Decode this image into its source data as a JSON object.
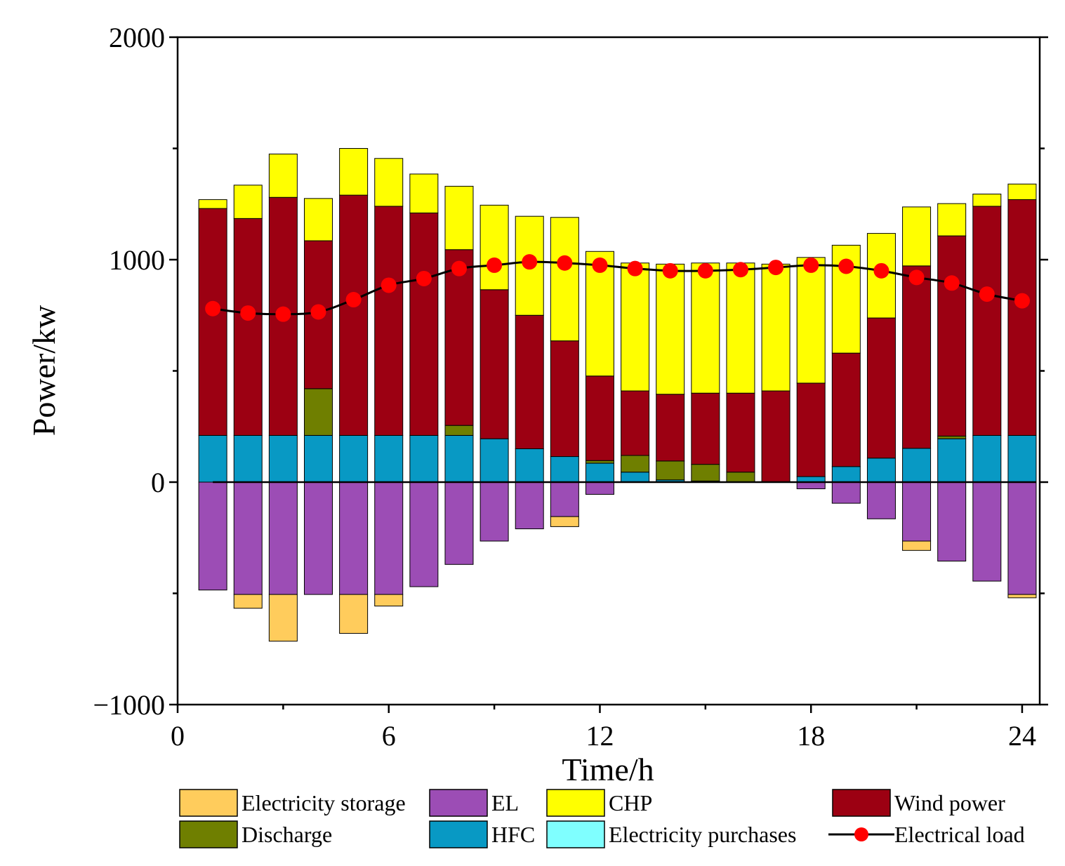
{
  "chart_data": {
    "type": "bar",
    "title": "",
    "xlabel": "Time/h",
    "ylabel": "Power/kw",
    "xlim": [
      0,
      24.5
    ],
    "ylim": [
      -1000,
      2000
    ],
    "xticks": [
      0,
      6,
      12,
      18,
      24
    ],
    "yticks": [
      -1000,
      0,
      1000,
      2000
    ],
    "x": [
      1,
      2,
      3,
      4,
      5,
      6,
      7,
      8,
      9,
      10,
      11,
      12,
      13,
      14,
      15,
      16,
      17,
      18,
      19,
      20,
      21,
      22,
      23,
      24
    ],
    "series": [
      {
        "name": "HFC",
        "color": "#0899C4",
        "values": [
          210,
          210,
          210,
          210,
          210,
          210,
          210,
          210,
          195,
          150,
          115,
          85,
          45,
          10,
          5,
          0,
          0,
          25,
          70,
          108,
          152,
          195,
          210,
          210
        ]
      },
      {
        "name": "Discharge",
        "color": "#6F7F00",
        "values": [
          0,
          0,
          0,
          210,
          0,
          0,
          0,
          45,
          0,
          0,
          0,
          12,
          75,
          85,
          75,
          45,
          0,
          0,
          0,
          0,
          0,
          12,
          0,
          0
        ]
      },
      {
        "name": "Electricity purchases",
        "color": "#7FFFFF",
        "values": [
          0,
          0,
          0,
          0,
          0,
          0,
          0,
          0,
          0,
          0,
          0,
          0,
          0,
          0,
          0,
          0,
          0,
          0,
          0,
          0,
          0,
          0,
          0,
          0
        ]
      },
      {
        "name": "Wind power",
        "color": "#9C0012",
        "values": [
          1020,
          975,
          1070,
          665,
          1080,
          1030,
          1000,
          790,
          670,
          600,
          520,
          380,
          290,
          300,
          320,
          355,
          410,
          420,
          510,
          630,
          820,
          900,
          1030,
          1060
        ]
      },
      {
        "name": "CHP",
        "color": "#FFFF00",
        "values": [
          40,
          150,
          195,
          190,
          210,
          215,
          175,
          285,
          380,
          445,
          555,
          560,
          575,
          585,
          585,
          585,
          570,
          565,
          485,
          380,
          265,
          145,
          55,
          70
        ]
      },
      {
        "name": "EL",
        "color": "#9C4DB5",
        "values": [
          -485,
          -505,
          -505,
          -505,
          -505,
          -505,
          -470,
          -370,
          -265,
          -210,
          -155,
          -55,
          0,
          0,
          0,
          0,
          0,
          -30,
          -95,
          -165,
          -265,
          -355,
          -445,
          -505
        ]
      },
      {
        "name": "Electricity storage",
        "color": "#FFCC5C",
        "values": [
          0,
          -62,
          -210,
          0,
          -175,
          -52,
          0,
          0,
          0,
          0,
          -45,
          0,
          0,
          0,
          0,
          0,
          0,
          0,
          0,
          0,
          -42,
          0,
          0,
          -15
        ]
      }
    ],
    "line": {
      "name": "Electrical load",
      "line_color": "#000000",
      "marker_color": "#FF0000",
      "values": [
        780,
        760,
        755,
        765,
        820,
        885,
        915,
        960,
        975,
        990,
        985,
        975,
        960,
        950,
        950,
        955,
        965,
        975,
        970,
        950,
        920,
        895,
        845,
        815
      ]
    },
    "legend": {
      "placement": "below plot",
      "order": [
        "Electricity storage",
        "EL",
        "CHP",
        "Wind power",
        "Discharge",
        "HFC",
        "Electricity purchases",
        "Electrical load"
      ]
    }
  }
}
